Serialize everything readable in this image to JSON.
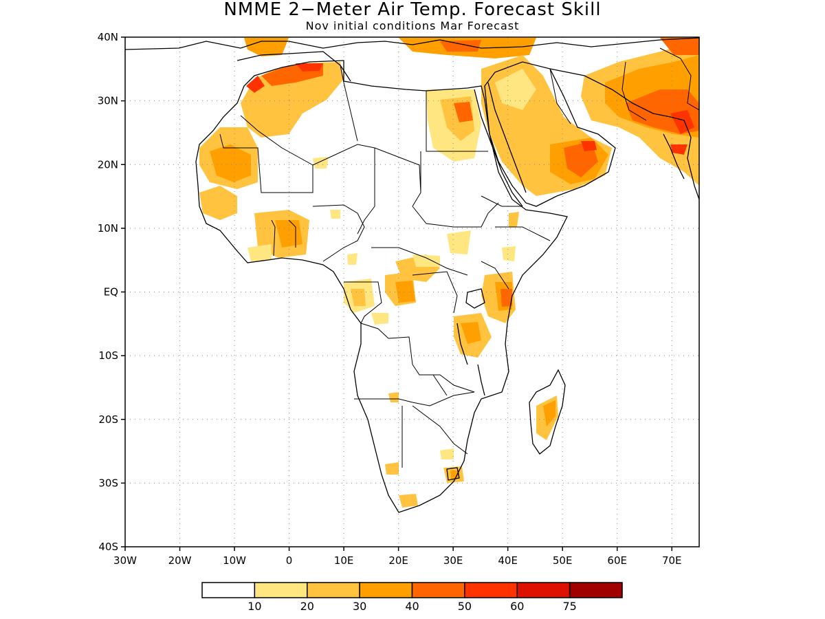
{
  "title": "NMME 2−Meter Air Temp. Forecast Skill",
  "subtitle": "Nov initial conditions  Mar Forecast",
  "map": {
    "lon_range": [
      -30,
      75
    ],
    "lat_range": [
      -40,
      40
    ],
    "lat_ticks": [
      {
        "value": 40,
        "label": "40N"
      },
      {
        "value": 30,
        "label": "30N"
      },
      {
        "value": 20,
        "label": "20N"
      },
      {
        "value": 10,
        "label": "10N"
      },
      {
        "value": 0,
        "label": "EQ"
      },
      {
        "value": -10,
        "label": "10S"
      },
      {
        "value": -20,
        "label": "20S"
      },
      {
        "value": -30,
        "label": "30S"
      },
      {
        "value": -40,
        "label": "40S"
      }
    ],
    "lon_ticks": [
      {
        "value": -30,
        "label": "30W"
      },
      {
        "value": -20,
        "label": "20W"
      },
      {
        "value": -10,
        "label": "10W"
      },
      {
        "value": 0,
        "label": "0"
      },
      {
        "value": 10,
        "label": "10E"
      },
      {
        "value": 20,
        "label": "20E"
      },
      {
        "value": 30,
        "label": "30E"
      },
      {
        "value": 40,
        "label": "40E"
      },
      {
        "value": 50,
        "label": "50E"
      },
      {
        "value": 60,
        "label": "60E"
      },
      {
        "value": 70,
        "label": "70E"
      }
    ],
    "gridlines": "dotted"
  },
  "colorbar": {
    "colors": [
      "#ffffff",
      "#ffe680",
      "#ffc340",
      "#ffa000",
      "#ff6600",
      "#ff3300",
      "#dd1100",
      "#a00000"
    ],
    "labels": [
      "10",
      "20",
      "30",
      "40",
      "50",
      "60",
      "75"
    ]
  }
}
